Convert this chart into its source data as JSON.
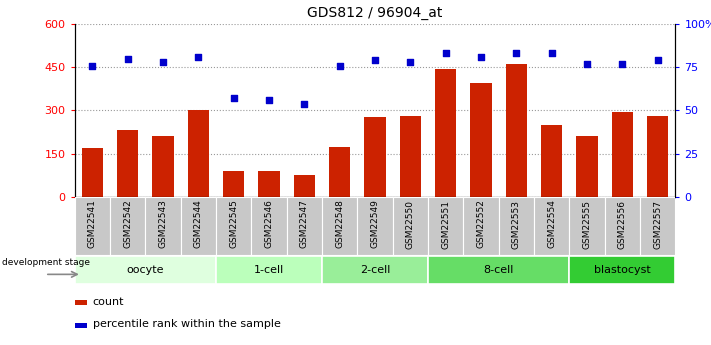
{
  "title": "GDS812 / 96904_at",
  "categories": [
    "GSM22541",
    "GSM22542",
    "GSM22543",
    "GSM22544",
    "GSM22545",
    "GSM22546",
    "GSM22547",
    "GSM22548",
    "GSM22549",
    "GSM22550",
    "GSM22551",
    "GSM22552",
    "GSM22553",
    "GSM22554",
    "GSM22555",
    "GSM22556",
    "GSM22557"
  ],
  "bar_values": [
    168,
    232,
    210,
    300,
    90,
    90,
    75,
    172,
    277,
    280,
    443,
    395,
    460,
    248,
    210,
    295,
    280
  ],
  "scatter_values": [
    76,
    80,
    78,
    81,
    57,
    56,
    54,
    76,
    79,
    78,
    83,
    81,
    83,
    83,
    77,
    77,
    79
  ],
  "bar_color": "#cc2200",
  "scatter_color": "#0000cc",
  "ylim_left": [
    0,
    600
  ],
  "ylim_right": [
    0,
    100
  ],
  "yticks_left": [
    0,
    150,
    300,
    450,
    600
  ],
  "ytick_labels_left": [
    "0",
    "150",
    "300",
    "450",
    "600"
  ],
  "yticks_right": [
    0,
    25,
    50,
    75,
    100
  ],
  "ytick_labels_right": [
    "0",
    "25",
    "50",
    "75",
    "100%"
  ],
  "groups": [
    {
      "label": "oocyte",
      "start": 0,
      "end": 3,
      "color": "#dfffdf"
    },
    {
      "label": "1-cell",
      "start": 4,
      "end": 6,
      "color": "#bbffbb"
    },
    {
      "label": "2-cell",
      "start": 7,
      "end": 9,
      "color": "#99ee99"
    },
    {
      "label": "8-cell",
      "start": 10,
      "end": 13,
      "color": "#66dd66"
    },
    {
      "label": "blastocyst",
      "start": 14,
      "end": 16,
      "color": "#33cc33"
    }
  ],
  "dev_stage_label": "development stage",
  "legend_bar_label": "count",
  "legend_scatter_label": "percentile rank within the sample",
  "grid_color": "#999999",
  "xtick_bg": "#c8c8c8",
  "plot_bg": "#ffffff"
}
